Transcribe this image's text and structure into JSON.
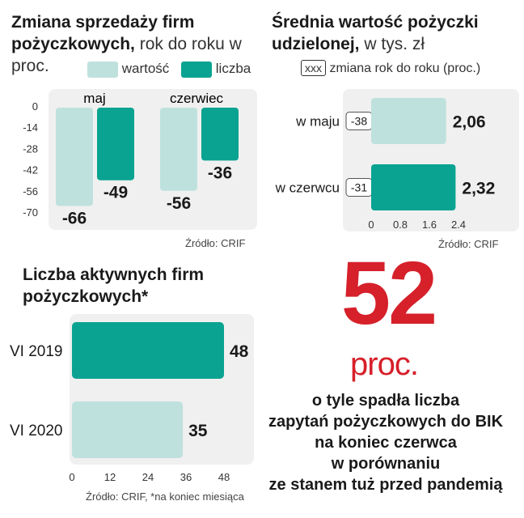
{
  "chart_data": [
    {
      "type": "bar",
      "title_bold": "Zmiana sprzedaży firm pożyczkowych,",
      "title_light": "rok do roku w proc.",
      "categories": [
        "maj",
        "czerwiec"
      ],
      "series": [
        {
          "name": "wartość",
          "values": [
            -66,
            -56
          ],
          "color": "#bfe1dd"
        },
        {
          "name": "liczba",
          "values": [
            -49,
            -36
          ],
          "color": "#0aa391"
        }
      ],
      "yticks": [
        "0",
        "-14",
        "-28",
        "-42",
        "-56",
        "-70"
      ],
      "ylim": [
        -70,
        0
      ],
      "value_labels": [
        "-66",
        "-49",
        "-56",
        "-36"
      ],
      "source": "Źródło: CRIF"
    },
    {
      "type": "bar",
      "orientation": "horizontal",
      "title_bold": "Średnia wartość pożyczki udzielonej,",
      "title_light": "w tys. zł",
      "legend_box": "xxx",
      "legend_text": "zmiana rok do roku (proc.)",
      "categories": [
        "w maju",
        "w czerwcu"
      ],
      "values": [
        2.06,
        2.32
      ],
      "value_labels": [
        "2,06",
        "2,32"
      ],
      "changes": [
        "-38",
        "-31"
      ],
      "colors": [
        "#bfe1dd",
        "#0aa391"
      ],
      "xticks": [
        "0",
        "0.8",
        "1.6",
        "2.4"
      ],
      "xlim": [
        0,
        2.4
      ],
      "source": "Źródło: CRIF"
    },
    {
      "type": "bar",
      "orientation": "horizontal",
      "title": "Liczba aktywnych firm pożyczkowych*",
      "categories": [
        "VI 2019",
        "VI 2020"
      ],
      "values": [
        48,
        35
      ],
      "value_labels": [
        "48",
        "35"
      ],
      "colors": [
        "#0aa391",
        "#bfe1dd"
      ],
      "xticks": [
        "0",
        "12",
        "24",
        "36",
        "48"
      ],
      "xlim": [
        0,
        48
      ],
      "source": "Źródło: CRIF, *na koniec miesiąca"
    }
  ],
  "callout": {
    "number": "52",
    "unit": "proc.",
    "lines": [
      "o tyle spadła liczba",
      "zapytań pożyczkowych do BIK",
      "na koniec czerwca",
      "w porównaniu",
      "ze stanem tuż przed pandemią"
    ]
  }
}
